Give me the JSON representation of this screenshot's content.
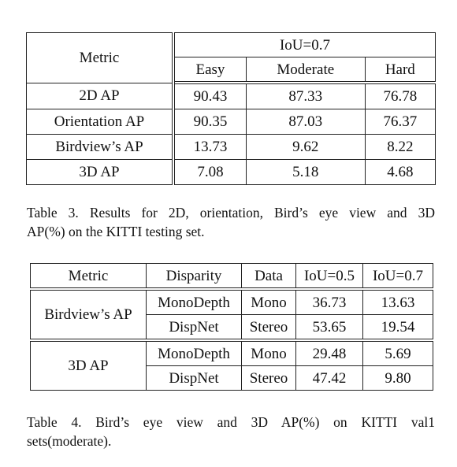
{
  "table3": {
    "header": {
      "metric": "Metric",
      "group": "IoU=0.7",
      "cols": [
        "Easy",
        "Moderate",
        "Hard"
      ]
    },
    "rows": [
      {
        "metric": "2D AP",
        "values": [
          "90.43",
          "87.33",
          "76.78"
        ]
      },
      {
        "metric": "Orientation AP",
        "values": [
          "90.35",
          "87.03",
          "76.37"
        ]
      },
      {
        "metric": "Birdview’s AP",
        "values": [
          "13.73",
          "9.62",
          "8.22"
        ]
      },
      {
        "metric": "3D AP",
        "values": [
          "7.08",
          "5.18",
          "4.68"
        ]
      }
    ],
    "caption_line1": "Table 3. Results for 2D, orientation, Bird’s eye view and 3D",
    "caption_line2": "AP(%) on the KITTI testing set."
  },
  "table4": {
    "header": [
      "Metric",
      "Disparity",
      "Data",
      "IoU=0.5",
      "IoU=0.7"
    ],
    "groups": [
      {
        "metric": "Birdview’s AP",
        "rows": [
          {
            "disparity": "MonoDepth",
            "data": "Mono",
            "iou05": "36.73",
            "iou07": "13.63"
          },
          {
            "disparity": "DispNet",
            "data": "Stereo",
            "iou05": "53.65",
            "iou07": "19.54"
          }
        ]
      },
      {
        "metric": "3D AP",
        "rows": [
          {
            "disparity": "MonoDepth",
            "data": "Mono",
            "iou05": "29.48",
            "iou07": "5.69"
          },
          {
            "disparity": "DispNet",
            "data": "Stereo",
            "iou05": "47.42",
            "iou07": "9.80"
          }
        ]
      }
    ],
    "caption_line1": "Table 4. Bird’s eye view and 3D AP(%) on KITTI val1",
    "caption_line2": "sets(moderate)."
  }
}
